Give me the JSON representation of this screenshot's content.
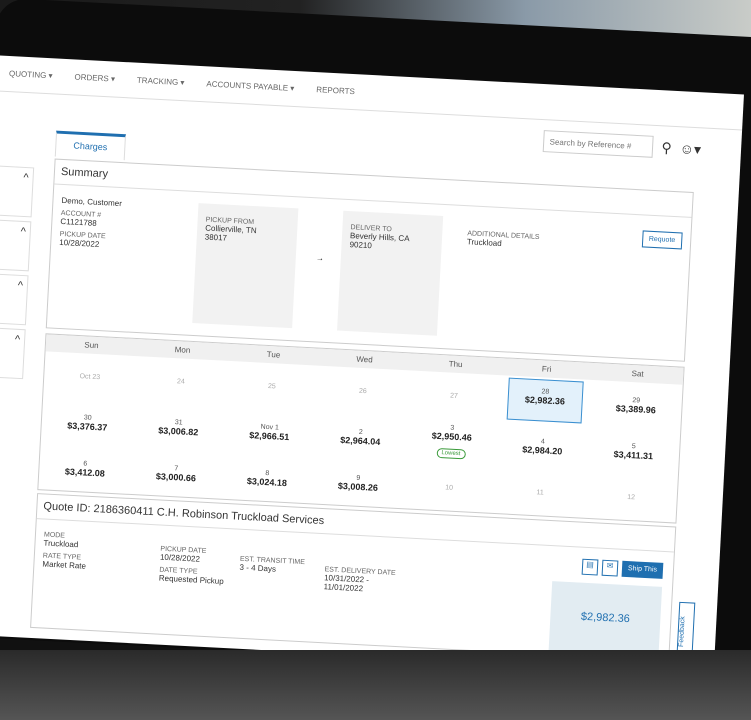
{
  "nav": {
    "items": [
      "QUOTING ▾",
      "ORDERS ▾",
      "TRACKING ▾",
      "ACCOUNTS PAYABLE ▾",
      "REPORTS"
    ]
  },
  "header": {
    "search_placeholder": "Search by Reference #"
  },
  "tabs": [
    {
      "label": "Charges"
    }
  ],
  "summary": {
    "title": "Summary",
    "customer": "Demo, Customer",
    "account_label": "ACCOUNT #",
    "account": "C1121788",
    "pickup_date_label": "PICKUP DATE",
    "pickup_date": "10/28/2022",
    "pickup_from_label": "PICKUP FROM",
    "pickup_from_city": "Collierville, TN",
    "pickup_from_zip": "38017",
    "deliver_to_label": "DELIVER TO",
    "deliver_city": "Beverly Hills, CA",
    "deliver_zip": "90210",
    "additional_label": "ADDITIONAL DETAILS",
    "additional": "Truckload",
    "requote": "Requote",
    "arrow": "→"
  },
  "calendar": {
    "days": [
      "Sun",
      "Mon",
      "Tue",
      "Wed",
      "Thu",
      "Fri",
      "Sat"
    ],
    "rows": [
      [
        {
          "d": "Oct 23",
          "p": "",
          "m": true
        },
        {
          "d": "24",
          "p": "",
          "m": true
        },
        {
          "d": "25",
          "p": "",
          "m": true
        },
        {
          "d": "26",
          "p": "",
          "m": true
        },
        {
          "d": "27",
          "p": "",
          "m": true
        },
        {
          "d": "28",
          "p": "$2,982.36",
          "sel": true
        },
        {
          "d": "29",
          "p": "$3,389.96"
        }
      ],
      [
        {
          "d": "30",
          "p": "$3,376.37"
        },
        {
          "d": "31",
          "p": "$3,006.82"
        },
        {
          "d": "Nov 1",
          "p": "$2,966.51"
        },
        {
          "d": "2",
          "p": "$2,964.04"
        },
        {
          "d": "3",
          "p": "$2,950.46",
          "badge": "Lowest"
        },
        {
          "d": "4",
          "p": "$2,984.20"
        },
        {
          "d": "5",
          "p": "$3,411.31"
        }
      ],
      [
        {
          "d": "6",
          "p": "$3,412.08"
        },
        {
          "d": "7",
          "p": "$3,000.66"
        },
        {
          "d": "8",
          "p": "$3,024.18"
        },
        {
          "d": "9",
          "p": "$3,008.26"
        },
        {
          "d": "10",
          "p": "",
          "m": true
        },
        {
          "d": "11",
          "p": "",
          "m": true
        },
        {
          "d": "12",
          "p": "",
          "m": true
        }
      ]
    ]
  },
  "quote": {
    "title": "Quote ID: 2186360411  C.H. Robinson Truckload Services",
    "mode_label": "MODE",
    "mode": "Truckload",
    "rate_type_label": "RATE TYPE",
    "rate_type": "Market Rate",
    "pickup_date_label": "PICKUP DATE",
    "pickup_date": "10/28/2022",
    "date_type_label": "DATE TYPE",
    "date_type": "Requested Pickup",
    "transit_label": "EST. TRANSIT TIME",
    "transit": "3 - 4 Days",
    "delivery_label": "EST. DELIVERY DATE",
    "delivery": "10/31/2022 - 11/01/2022",
    "price": "$2,982.36",
    "ship": "Ship This"
  },
  "feedback": "Feedback",
  "colors": {
    "accent": "#1f6fb0",
    "lowest": "#3a9a3a",
    "selected_bg": "#e3f1fb"
  }
}
